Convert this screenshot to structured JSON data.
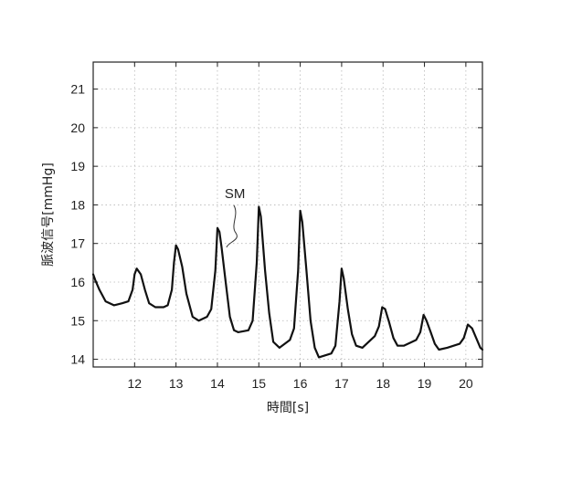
{
  "chart_data": {
    "type": "line",
    "title": "",
    "xlabel": "時間[s]",
    "ylabel": "脈波信号[mmHg]",
    "xlim": [
      11.0,
      20.4
    ],
    "ylim": [
      13.8,
      21.7
    ],
    "xticks": [
      12,
      13,
      14,
      15,
      16,
      17,
      18,
      19,
      20
    ],
    "yticks": [
      14,
      15,
      16,
      17,
      18,
      19,
      20,
      21
    ],
    "grid": true,
    "legend": "none",
    "annotations": [
      {
        "text": "SM",
        "target": {
          "x": 14.22,
          "y": 16.9
        }
      }
    ],
    "series": [
      {
        "color": "#111111",
        "x": [
          11.0,
          11.05,
          11.15,
          11.3,
          11.5,
          11.7,
          11.85,
          11.95,
          12.0,
          12.05,
          12.15,
          12.25,
          12.35,
          12.5,
          12.7,
          12.8,
          12.9,
          12.95,
          13.0,
          13.05,
          13.15,
          13.25,
          13.4,
          13.55,
          13.75,
          13.85,
          13.95,
          14.0,
          14.05,
          14.1,
          14.2,
          14.3,
          14.4,
          14.5,
          14.75,
          14.85,
          14.95,
          15.0,
          15.05,
          15.15,
          15.25,
          15.35,
          15.5,
          15.75,
          15.85,
          15.95,
          16.0,
          16.05,
          16.15,
          16.25,
          16.35,
          16.45,
          16.75,
          16.85,
          16.95,
          17.0,
          17.05,
          17.15,
          17.25,
          17.35,
          17.5,
          17.8,
          17.9,
          17.98,
          18.05,
          18.15,
          18.25,
          18.35,
          18.5,
          18.8,
          18.9,
          18.98,
          19.05,
          19.15,
          19.25,
          19.35,
          19.55,
          19.85,
          19.95,
          20.05,
          20.15,
          20.25,
          20.35,
          20.4
        ],
        "y": [
          16.2,
          16.05,
          15.8,
          15.5,
          15.4,
          15.45,
          15.5,
          15.8,
          16.2,
          16.35,
          16.2,
          15.8,
          15.45,
          15.35,
          15.35,
          15.4,
          15.8,
          16.5,
          16.95,
          16.85,
          16.4,
          15.7,
          15.1,
          15.0,
          15.1,
          15.3,
          16.3,
          17.4,
          17.3,
          16.9,
          16.0,
          15.1,
          14.75,
          14.7,
          14.75,
          15.0,
          16.5,
          17.95,
          17.7,
          16.3,
          15.2,
          14.45,
          14.3,
          14.5,
          14.8,
          16.3,
          17.85,
          17.55,
          16.3,
          15.0,
          14.3,
          14.05,
          14.15,
          14.35,
          15.5,
          16.35,
          16.1,
          15.3,
          14.65,
          14.35,
          14.3,
          14.6,
          14.85,
          15.35,
          15.3,
          14.95,
          14.55,
          14.35,
          14.35,
          14.5,
          14.7,
          15.15,
          15.0,
          14.7,
          14.4,
          14.25,
          14.3,
          14.4,
          14.55,
          14.9,
          14.8,
          14.55,
          14.3,
          14.25
        ]
      }
    ]
  }
}
